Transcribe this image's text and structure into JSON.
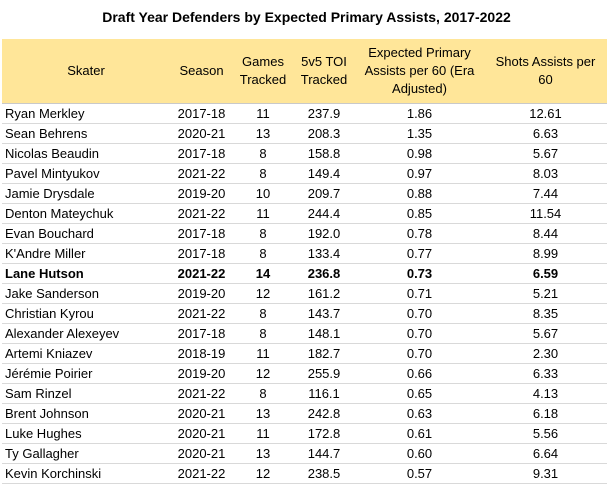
{
  "chart_data": {
    "type": "table",
    "title": "Draft Year Defenders by Expected Primary Assists, 2017-2022",
    "columns": [
      "Skater",
      "Season",
      "Games Tracked",
      "5v5 TOI Tracked",
      "Expected Primary Assists per 60 (Era Adjusted)",
      "Shots Assists per 60"
    ],
    "rows": [
      {
        "skater": "Ryan Merkley",
        "season": "2017-18",
        "games": "11",
        "toi": "237.9",
        "xpa60": "1.86",
        "sa60": "12.61"
      },
      {
        "skater": "Sean Behrens",
        "season": "2020-21",
        "games": "13",
        "toi": "208.3",
        "xpa60": "1.35",
        "sa60": "6.63"
      },
      {
        "skater": "Nicolas Beaudin",
        "season": "2017-18",
        "games": "8",
        "toi": "158.8",
        "xpa60": "0.98",
        "sa60": "5.67"
      },
      {
        "skater": "Pavel Mintyukov",
        "season": "2021-22",
        "games": "8",
        "toi": "149.4",
        "xpa60": "0.97",
        "sa60": "8.03"
      },
      {
        "skater": "Jamie Drysdale",
        "season": "2019-20",
        "games": "10",
        "toi": "209.7",
        "xpa60": "0.88",
        "sa60": "7.44"
      },
      {
        "skater": "Denton Mateychuk",
        "season": "2021-22",
        "games": "11",
        "toi": "244.4",
        "xpa60": "0.85",
        "sa60": "11.54"
      },
      {
        "skater": "Evan Bouchard",
        "season": "2017-18",
        "games": "8",
        "toi": "192.0",
        "xpa60": "0.78",
        "sa60": "8.44"
      },
      {
        "skater": "K'Andre Miller",
        "season": "2017-18",
        "games": "8",
        "toi": "133.4",
        "xpa60": "0.77",
        "sa60": "8.99"
      },
      {
        "skater": "Lane Hutson",
        "season": "2021-22",
        "games": "14",
        "toi": "236.8",
        "xpa60": "0.73",
        "sa60": "6.59",
        "highlight": true
      },
      {
        "skater": "Jake Sanderson",
        "season": "2019-20",
        "games": "12",
        "toi": "161.2",
        "xpa60": "0.71",
        "sa60": "5.21"
      },
      {
        "skater": "Christian Kyrou",
        "season": "2021-22",
        "games": "8",
        "toi": "143.7",
        "xpa60": "0.70",
        "sa60": "8.35"
      },
      {
        "skater": "Alexander Alexeyev",
        "season": "2017-18",
        "games": "8",
        "toi": "148.1",
        "xpa60": "0.70",
        "sa60": "5.67"
      },
      {
        "skater": "Artemi Kniazev",
        "season": "2018-19",
        "games": "11",
        "toi": "182.7",
        "xpa60": "0.70",
        "sa60": "2.30"
      },
      {
        "skater": "Jérémie Poirier",
        "season": "2019-20",
        "games": "12",
        "toi": "255.9",
        "xpa60": "0.66",
        "sa60": "6.33"
      },
      {
        "skater": "Sam Rinzel",
        "season": "2021-22",
        "games": "8",
        "toi": "116.1",
        "xpa60": "0.65",
        "sa60": "4.13"
      },
      {
        "skater": "Brent Johnson",
        "season": "2020-21",
        "games": "13",
        "toi": "242.8",
        "xpa60": "0.63",
        "sa60": "6.18"
      },
      {
        "skater": "Luke Hughes",
        "season": "2020-21",
        "games": "11",
        "toi": "172.8",
        "xpa60": "0.61",
        "sa60": "5.56"
      },
      {
        "skater": "Ty Gallagher",
        "season": "2020-21",
        "games": "13",
        "toi": "144.7",
        "xpa60": "0.60",
        "sa60": "6.64"
      },
      {
        "skater": "Kevin Korchinski",
        "season": "2021-22",
        "games": "12",
        "toi": "238.5",
        "xpa60": "0.57",
        "sa60": "9.31"
      }
    ]
  },
  "colors": {
    "header_fill": "#ffe699",
    "row_rule": "#d9d9d9",
    "highlight_weight": "bold"
  }
}
